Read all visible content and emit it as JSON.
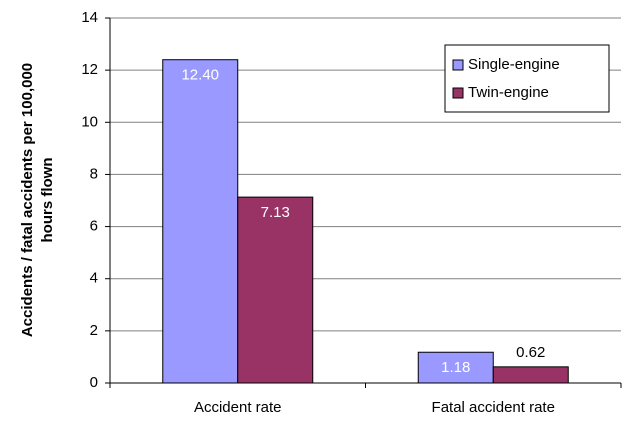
{
  "chart_data": {
    "type": "bar",
    "ylabel": [
      "Accidents / fatal accidents per 100,000",
      "hours flown"
    ],
    "categories": [
      "Accident rate",
      "Fatal accident rate"
    ],
    "series": [
      {
        "name": "Single-engine",
        "color": "#9999ff",
        "values": [
          12.4,
          1.18
        ],
        "value_labels": [
          "12.40",
          "1.18"
        ]
      },
      {
        "name": "Twin-engine",
        "color": "#993366",
        "values": [
          7.13,
          0.62
        ],
        "value_labels": [
          "7.13",
          "0.62"
        ]
      }
    ],
    "ylim": [
      0,
      14
    ],
    "yticks": [
      0,
      2,
      4,
      6,
      8,
      10,
      12,
      14
    ],
    "grid": true,
    "legend": "upper right"
  }
}
